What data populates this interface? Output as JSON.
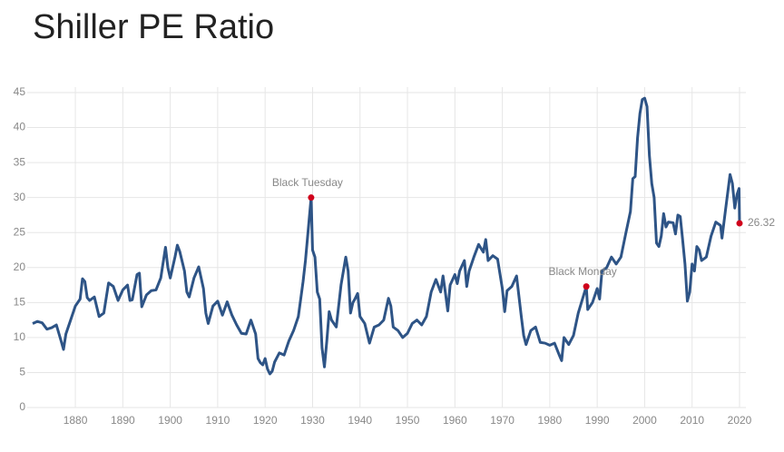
{
  "chart_data": {
    "type": "line",
    "title": "Shiller PE Ratio",
    "x": [
      1871,
      1872,
      1873,
      1874,
      1875,
      1876,
      1877,
      1877.5,
      1878,
      1879,
      1880,
      1881,
      1881.5,
      1882,
      1882.5,
      1883,
      1884,
      1885,
      1886,
      1887,
      1888,
      1889,
      1890,
      1891,
      1891.5,
      1892,
      1893,
      1893.5,
      1894,
      1895,
      1896,
      1897,
      1898,
      1899,
      1899.5,
      1900,
      1901,
      1901.5,
      1902,
      1903,
      1903.5,
      1904,
      1905,
      1906,
      1907,
      1907.5,
      1908,
      1909,
      1910,
      1911,
      1912,
      1913,
      1914,
      1915,
      1916,
      1917,
      1918,
      1918.5,
      1919,
      1919.5,
      1920,
      1920.5,
      1921,
      1921.5,
      1922,
      1923,
      1924,
      1925,
      1926,
      1927,
      1928,
      1928.5,
      1929.7,
      1930,
      1930.5,
      1931,
      1931.5,
      1932,
      1932.5,
      1933,
      1933.5,
      1934,
      1935,
      1936,
      1937,
      1937.5,
      1938,
      1938.5,
      1939,
      1939.5,
      1940,
      1941,
      1942,
      1943,
      1944,
      1945,
      1946,
      1946.5,
      1947,
      1948,
      1949,
      1950,
      1951,
      1952,
      1953,
      1954,
      1955,
      1956,
      1957,
      1957.5,
      1958,
      1958.5,
      1959,
      1960,
      1960.5,
      1961,
      1962,
      1962.5,
      1963,
      1964,
      1965,
      1966,
      1966.5,
      1967,
      1968,
      1969,
      1970,
      1970.5,
      1971,
      1972,
      1973,
      1974,
      1974.5,
      1975,
      1976,
      1977,
      1978,
      1979,
      1980,
      1981,
      1982,
      1982.5,
      1983,
      1984,
      1985,
      1986,
      1987.7,
      1988,
      1989,
      1990,
      1990.5,
      1991,
      1992,
      1993,
      1994,
      1995,
      1996,
      1997,
      1997.5,
      1998,
      1998.5,
      1999,
      1999.5,
      2000,
      2000.5,
      2001,
      2001.5,
      2002,
      2002.5,
      2003,
      2003.5,
      2004,
      2004.5,
      2005,
      2006,
      2006.5,
      2007,
      2007.5,
      2008,
      2008.5,
      2009,
      2009.5,
      2010,
      2010.5,
      2011,
      2011.5,
      2012,
      2013,
      2014,
      2015,
      2016,
      2016.3,
      2017,
      2018,
      2018.5,
      2019,
      2019.5,
      2019.9,
      2020
    ],
    "series": [
      {
        "name": "Shiller PE Ratio",
        "color": "#2e5486",
        "values": [
          12.0,
          12.3,
          12.1,
          11.2,
          11.4,
          11.8,
          9.5,
          8.3,
          10.5,
          12.5,
          14.5,
          15.5,
          18.4,
          18.0,
          15.7,
          15.3,
          15.8,
          13.0,
          13.5,
          17.8,
          17.3,
          15.3,
          16.8,
          17.5,
          15.3,
          15.4,
          19.0,
          19.2,
          14.4,
          16.1,
          16.7,
          16.8,
          18.5,
          22.9,
          20.0,
          18.5,
          21.5,
          23.2,
          22.3,
          19.5,
          16.5,
          15.8,
          18.5,
          20.1,
          17.0,
          13.5,
          12.0,
          14.5,
          15.2,
          13.2,
          15.1,
          13.2,
          11.8,
          10.6,
          10.5,
          12.5,
          10.5,
          7.0,
          6.4,
          6.1,
          7.0,
          5.5,
          4.8,
          5.2,
          6.5,
          7.8,
          7.5,
          9.5,
          11.0,
          13.0,
          18.0,
          21.0,
          30.0,
          22.5,
          21.5,
          16.5,
          15.5,
          8.5,
          5.8,
          9.5,
          13.7,
          12.5,
          11.5,
          17.5,
          21.5,
          19.5,
          13.5,
          15.0,
          15.6,
          16.3,
          13.0,
          12.0,
          9.2,
          11.5,
          11.8,
          12.5,
          15.6,
          14.5,
          11.5,
          11.0,
          10.0,
          10.6,
          12.0,
          12.5,
          11.8,
          13.0,
          16.5,
          18.3,
          16.5,
          18.8,
          16.4,
          13.8,
          17.5,
          19.0,
          17.7,
          19.5,
          21.0,
          17.3,
          19.5,
          21.5,
          23.3,
          22.2,
          24.0,
          21.0,
          21.7,
          21.2,
          17.0,
          13.7,
          16.7,
          17.3,
          18.8,
          13.0,
          10.3,
          9.0,
          11.0,
          11.5,
          9.3,
          9.2,
          8.9,
          9.2,
          7.5,
          6.7,
          10.0,
          9.0,
          10.3,
          13.5,
          17.3,
          14.0,
          15.0,
          17.0,
          15.5,
          19.5,
          20.0,
          21.5,
          20.5,
          21.5,
          24.8,
          28.0,
          32.7,
          33.0,
          38.5,
          42.0,
          44.0,
          44.2,
          43.0,
          36.0,
          32.0,
          30.0,
          23.5,
          23.0,
          24.5,
          27.7,
          25.8,
          26.5,
          26.4,
          24.8,
          27.5,
          27.3,
          24.0,
          20.5,
          15.2,
          16.5,
          20.5,
          19.5,
          23.0,
          22.5,
          21.0,
          21.5,
          24.5,
          26.5,
          26.0,
          24.2,
          28.0,
          33.3,
          32.0,
          28.5,
          30.5,
          31.3,
          26.32
        ]
      }
    ],
    "annotations": [
      {
        "label": "Black Tuesday",
        "x": 1929.7,
        "y": 30.0
      },
      {
        "label": "Black Monday",
        "x": 1987.7,
        "y": 17.3
      }
    ],
    "marker_color": "#d0021b",
    "xlim": [
      1871,
      2020
    ],
    "xticks": [
      1880,
      1890,
      1900,
      1910,
      1920,
      1930,
      1940,
      1950,
      1960,
      1970,
      1980,
      1990,
      2000,
      2010,
      2020
    ],
    "ylim": [
      0,
      45
    ],
    "yticks": [
      0,
      5,
      10,
      15,
      20,
      25,
      30,
      35,
      40,
      45
    ],
    "grid": true
  }
}
